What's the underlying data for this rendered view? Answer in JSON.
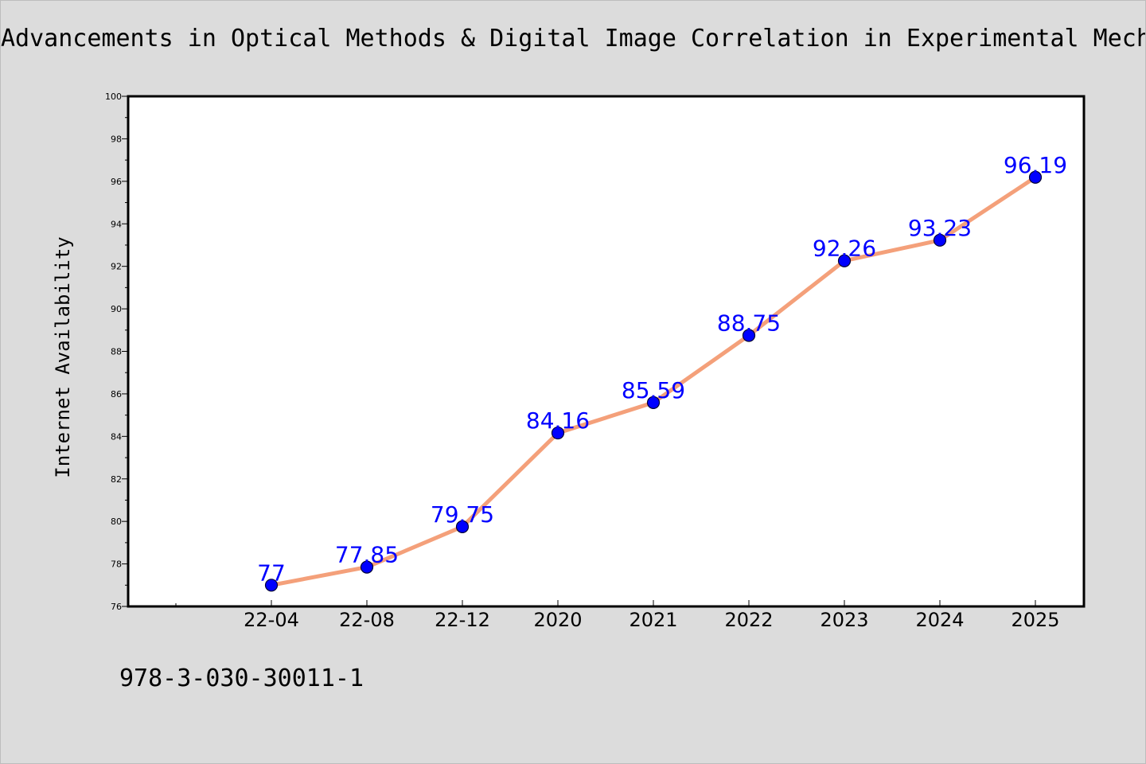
{
  "chart_data": {
    "type": "line",
    "title": "Advancements in Optical Methods & Digital Image Correlation in Experimental Mech",
    "xlabel": "",
    "ylabel": "Internet Availability",
    "categories": [
      "22-04",
      "22-08",
      "22-12",
      "2020",
      "2021",
      "2022",
      "2023",
      "2024",
      "2025"
    ],
    "series": [
      {
        "values": [
          77,
          77.85,
          79.75,
          84.16,
          85.59,
          88.75,
          92.26,
          93.23,
          96.19
        ],
        "data_labels": [
          "77",
          "77.85",
          "79.75",
          "84.16",
          "85.59",
          "88.75",
          "92.26",
          "93.23",
          "96.19"
        ]
      }
    ],
    "ylim": [
      76,
      100
    ],
    "yticks": [
      "76",
      "78",
      "80",
      "82",
      "84",
      "86",
      "88",
      "90",
      "92",
      "94",
      "96",
      "98",
      "100"
    ],
    "grid": false,
    "line_color": "#f4a07a",
    "marker_color": "#0000ff"
  },
  "footer": {
    "code": "978-3-030-30011-1"
  }
}
